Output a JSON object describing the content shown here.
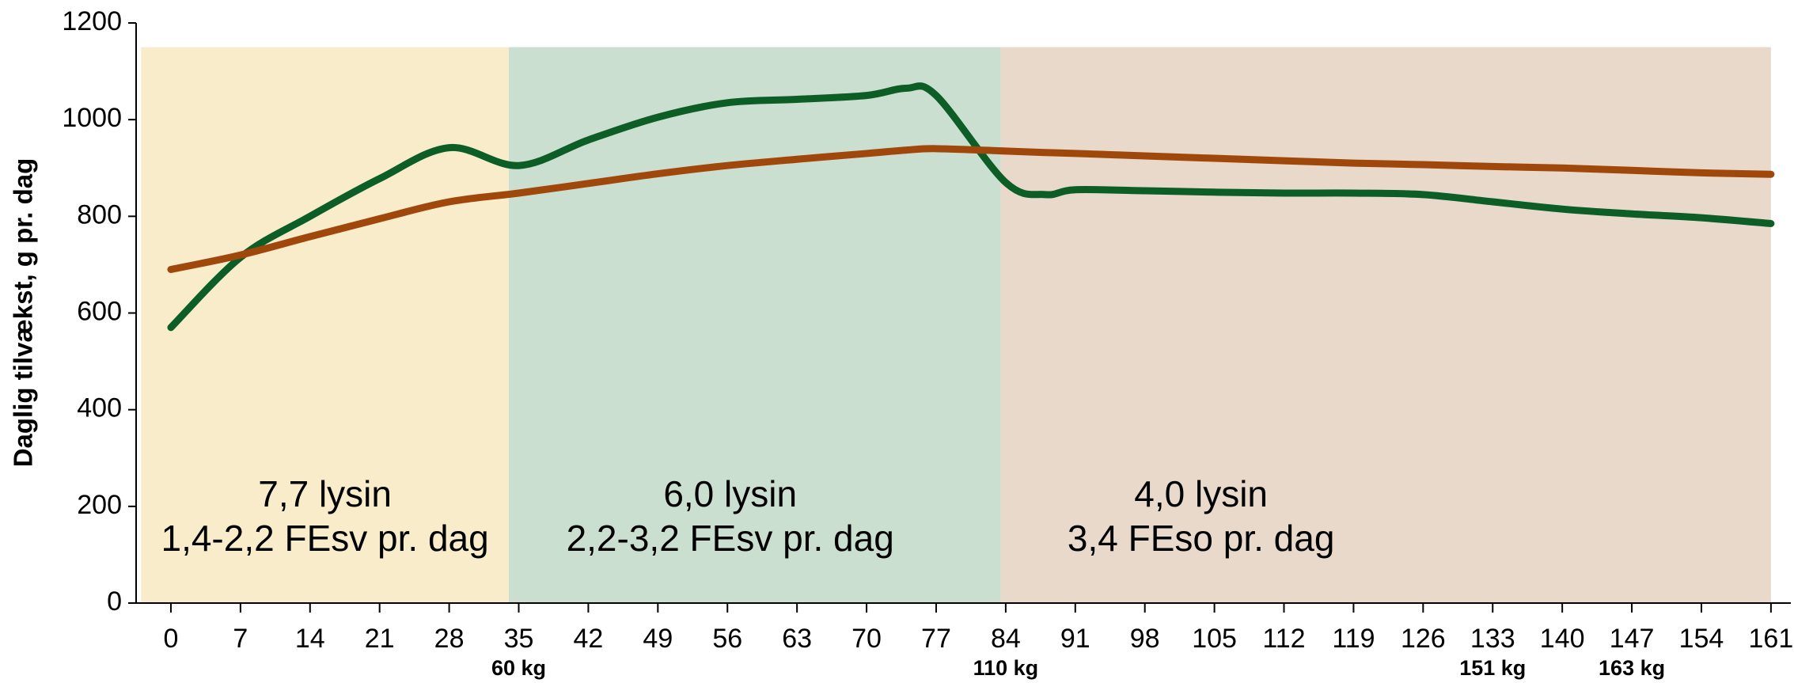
{
  "chart_data": {
    "type": "line",
    "y_label": "Daglig tilvækst, g pr. dag",
    "x": [
      0,
      7,
      14,
      21,
      28,
      35,
      42,
      49,
      56,
      63,
      70,
      74,
      77,
      84,
      88,
      91,
      98,
      105,
      112,
      119,
      126,
      133,
      140,
      147,
      154,
      161
    ],
    "series": [
      {
        "color": "#0d5e26",
        "values": [
          570,
          715,
          800,
          878,
          942,
          905,
          958,
          1005,
          1035,
          1042,
          1050,
          1065,
          1050,
          870,
          845,
          855,
          853,
          850,
          848,
          848,
          845,
          830,
          815,
          805,
          797,
          785
        ]
      },
      {
        "color": "#a0480c",
        "values": [
          690,
          720,
          758,
          795,
          830,
          848,
          868,
          888,
          905,
          918,
          930,
          937,
          940,
          935,
          932,
          930,
          925,
          920,
          915,
          910,
          907,
          903,
          900,
          895,
          890,
          887
        ]
      }
    ],
    "xlim": [
      -3.5,
      163
    ],
    "xticks": [
      0,
      7,
      14,
      21,
      28,
      35,
      42,
      49,
      56,
      63,
      70,
      77,
      84,
      91,
      98,
      105,
      112,
      119,
      126,
      133,
      140,
      147,
      154,
      161
    ],
    "ylim": [
      0,
      1200
    ],
    "yticks": [
      0,
      200,
      400,
      600,
      800,
      1000,
      1200
    ],
    "regions": [
      {
        "x": [
          -3,
          34
        ],
        "top": 1150,
        "color": "#f8ecca",
        "label": [
          "7,7 lysin",
          "1,4-2,2 FEsv pr. dag"
        ]
      },
      {
        "x": [
          34,
          83.5
        ],
        "top": 1150,
        "color": "#cbdfd1",
        "label": [
          "6,0 lysin",
          "2,2-3,2 FEsv pr. dag"
        ]
      },
      {
        "x": [
          83.5,
          161
        ],
        "top": 1150,
        "color": "#e8d9cb",
        "label": [
          "4,0 lysin",
          "3,4 FEso pr. dag"
        ]
      }
    ],
    "annotations": [
      {
        "x": 35,
        "text": "60 kg"
      },
      {
        "x": 84,
        "text": "110 kg"
      },
      {
        "x": 133,
        "text": "151 kg"
      },
      {
        "x": 147,
        "text": "163 kg"
      }
    ]
  }
}
